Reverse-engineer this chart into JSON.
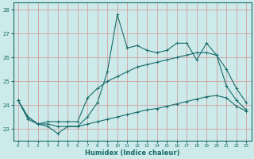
{
  "xlabel": "Humidex (Indice chaleur)",
  "bg_color": "#cceaea",
  "grid_color": "#d4a0a0",
  "line_color": "#1a6b6b",
  "xlim": [
    -0.5,
    23.5
  ],
  "ylim": [
    22.5,
    28.3
  ],
  "x_data": [
    0,
    1,
    2,
    3,
    4,
    5,
    6,
    7,
    8,
    9,
    10,
    11,
    12,
    13,
    14,
    15,
    16,
    17,
    18,
    19,
    20,
    21,
    22,
    23
  ],
  "y_main": [
    24.2,
    23.4,
    23.2,
    23.1,
    22.8,
    23.1,
    23.1,
    23.5,
    24.1,
    25.4,
    27.8,
    26.4,
    26.5,
    26.3,
    26.2,
    26.3,
    26.6,
    26.6,
    25.9,
    26.6,
    26.1,
    24.8,
    24.2,
    23.8
  ],
  "y_upper": [
    24.2,
    23.5,
    23.2,
    23.3,
    23.3,
    23.3,
    23.3,
    24.3,
    24.7,
    25.0,
    25.2,
    25.4,
    25.6,
    25.7,
    25.8,
    25.9,
    26.0,
    26.1,
    26.2,
    26.2,
    26.1,
    25.5,
    24.7,
    24.1
  ],
  "y_lower": [
    24.2,
    23.5,
    23.2,
    23.2,
    23.1,
    23.1,
    23.1,
    23.2,
    23.3,
    23.4,
    23.5,
    23.6,
    23.7,
    23.8,
    23.85,
    23.95,
    24.05,
    24.15,
    24.25,
    24.35,
    24.4,
    24.3,
    23.95,
    23.75
  ],
  "yticks": [
    23,
    24,
    25,
    26,
    27,
    28
  ]
}
